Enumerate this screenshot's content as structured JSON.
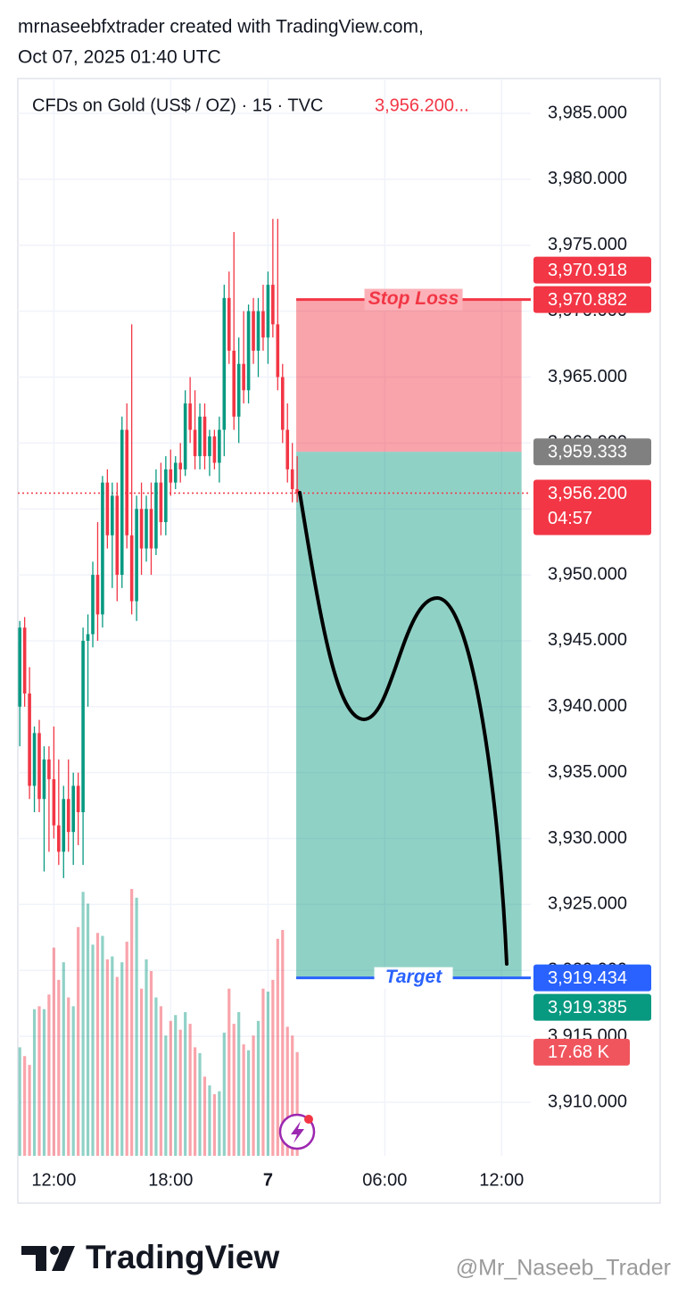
{
  "chart_data": {
    "type": "candlestick",
    "header": [
      "mrnaseebfxtrader created with TradingView.com,",
      "Oct 07, 2025 01:40 UTC"
    ],
    "legend_title": "CFDs on Gold (US$ / OZ) · 15 · TVC",
    "legend_price": "3,956.200...",
    "up_color": "#089981",
    "down_color": "#f23645",
    "ohlc": [
      [
        3940,
        3946.5,
        3937,
        3946
      ],
      [
        3946,
        3946.8,
        3940,
        3941
      ],
      [
        3941,
        3943,
        3933,
        3934
      ],
      [
        3934,
        3938.5,
        3932,
        3938
      ],
      [
        3938,
        3939,
        3932,
        3933
      ],
      [
        3933,
        3937,
        3927.5,
        3936
      ],
      [
        3936,
        3937,
        3929,
        3934.5
      ],
      [
        3934.5,
        3938.5,
        3930,
        3931
      ],
      [
        3931,
        3936,
        3928,
        3929
      ],
      [
        3929,
        3934,
        3927,
        3933
      ],
      [
        3933,
        3936,
        3929,
        3930.5
      ],
      [
        3930.5,
        3935,
        3928,
        3934
      ],
      [
        3934,
        3935,
        3929.5,
        3932
      ],
      [
        3932,
        3946,
        3928,
        3945
      ],
      [
        3945,
        3947,
        3940,
        3945.5
      ],
      [
        3945.5,
        3951,
        3944.5,
        3950
      ],
      [
        3950,
        3954,
        3945,
        3947
      ],
      [
        3947,
        3957.5,
        3946,
        3957
      ],
      [
        3957,
        3958,
        3952,
        3953
      ],
      [
        3953,
        3957,
        3949,
        3956
      ],
      [
        3956,
        3957,
        3948,
        3950
      ],
      [
        3950,
        3962,
        3949,
        3961
      ],
      [
        3961,
        3963,
        3952,
        3953
      ],
      [
        3953,
        3969,
        3947,
        3948
      ],
      [
        3948,
        3956,
        3946.5,
        3955
      ],
      [
        3955,
        3957,
        3950,
        3952
      ],
      [
        3952,
        3956,
        3951,
        3955
      ],
      [
        3955,
        3957,
        3950,
        3952
      ],
      [
        3952,
        3958,
        3951.5,
        3957
      ],
      [
        3957,
        3958.5,
        3953,
        3954
      ],
      [
        3954,
        3959,
        3953,
        3958
      ],
      [
        3958,
        3959.5,
        3956,
        3957
      ],
      [
        3957,
        3959,
        3956.5,
        3958.5
      ],
      [
        3958.5,
        3960,
        3957,
        3958
      ],
      [
        3958,
        3964,
        3957.5,
        3963
      ],
      [
        3963,
        3965,
        3960,
        3961
      ],
      [
        3961,
        3964,
        3958,
        3959
      ],
      [
        3959,
        3963,
        3958,
        3962
      ],
      [
        3962,
        3963,
        3958,
        3959
      ],
      [
        3959,
        3961,
        3957.5,
        3960.5
      ],
      [
        3960.5,
        3961,
        3958,
        3958.5
      ],
      [
        3958.5,
        3962,
        3957,
        3961
      ],
      [
        3961,
        3972,
        3959,
        3971
      ],
      [
        3971,
        3973,
        3966,
        3967
      ],
      [
        3967,
        3976,
        3961,
        3962
      ],
      [
        3962,
        3968,
        3960,
        3966
      ],
      [
        3966,
        3970,
        3963,
        3964
      ],
      [
        3964,
        3970.5,
        3963,
        3970
      ],
      [
        3970,
        3971,
        3966,
        3967
      ],
      [
        3967,
        3971,
        3965,
        3970
      ],
      [
        3970,
        3972,
        3967,
        3968
      ],
      [
        3968,
        3973,
        3966,
        3972
      ],
      [
        3972,
        3977,
        3968,
        3969
      ],
      [
        3969,
        3977,
        3964,
        3965
      ],
      [
        3965,
        3966,
        3960,
        3961
      ],
      [
        3961,
        3963,
        3957,
        3958
      ],
      [
        3958,
        3960,
        3955.5,
        3956.5
      ],
      [
        3956.5,
        3959,
        3955.5,
        3956.2
      ]
    ],
    "volumes": [
      18500,
      17000,
      15500,
      25000,
      25500,
      25000,
      27500,
      35500,
      30000,
      33000,
      27000,
      25500,
      39000,
      45000,
      43000,
      36000,
      38000,
      37500,
      33500,
      34000,
      30500,
      33000,
      36500,
      45500,
      44000,
      28500,
      33500,
      31500,
      27000,
      25500,
      20500,
      23000,
      24000,
      21500,
      24500,
      22500,
      18500,
      17500,
      13500,
      12000,
      10500,
      11000,
      21000,
      28500,
      22500,
      24500,
      19000,
      18000,
      20500,
      23000,
      28500,
      28000,
      30000,
      37000,
      38500,
      22000,
      20500,
      17680
    ],
    "last_volume_label": "17.68 K",
    "volume_tag_color": "#f0555e",
    "xlim": [
      -0.4,
      105
    ],
    "xticks": [
      {
        "value": 7,
        "label": "12:00"
      },
      {
        "value": 31,
        "label": "18:00"
      },
      {
        "value": 51,
        "label": "7"
      },
      {
        "value": 75,
        "label": "06:00"
      },
      {
        "value": 99,
        "label": "12:00"
      }
    ],
    "ylim": [
      3905.94,
      3987.64
    ],
    "yticks": [
      {
        "value": 3985,
        "label": "3,985.000"
      },
      {
        "value": 3980,
        "label": "3,980.000"
      },
      {
        "value": 3975,
        "label": "3,975.000"
      },
      {
        "value": 3970,
        "label": "3,970.000"
      },
      {
        "value": 3965,
        "label": "3,965.000"
      },
      {
        "value": 3960,
        "label": "3,960.000"
      },
      {
        "value": 3955,
        "label": "3,955.000"
      },
      {
        "value": 3950,
        "label": "3,950.000"
      },
      {
        "value": 3945,
        "label": "3,945.000"
      },
      {
        "value": 3940,
        "label": "3,940.000"
      },
      {
        "value": 3935,
        "label": "3,935.000"
      },
      {
        "value": 3930,
        "label": "3,930.000"
      },
      {
        "value": 3925,
        "label": "3,925.000"
      },
      {
        "value": 3920,
        "label": "3,920.000"
      },
      {
        "value": 3915,
        "label": "3,915.000"
      },
      {
        "value": 3910,
        "label": "3,910.000"
      }
    ],
    "grid": true,
    "current_price": 3956.2,
    "tags": [
      {
        "value": 3970.882,
        "label": "3,970.882",
        "color": "#f23645"
      },
      {
        "value": 3970.918,
        "label": "3,970.918",
        "color": "#f23645"
      },
      {
        "value": 3959.333,
        "label": "3,959.333",
        "color": "#808080"
      },
      {
        "value": 3956.2,
        "label": "3,956.200",
        "color": "#f23645",
        "countdown": "04:57"
      },
      {
        "value": 3919.434,
        "label": "3,919.434",
        "color": "#2962ff"
      },
      {
        "value": 3919.385,
        "label": "3,919.385",
        "color": "#089981"
      }
    ],
    "position": {
      "entry": 3959.333,
      "stop": 3970.882,
      "target": 3919.434,
      "start": 56.8,
      "end": 103.1,
      "stop_label": "Stop Loss",
      "target_label": "Target",
      "stop_color": "#f23645",
      "target_color": "#2962ff"
    },
    "brand": "TradingView",
    "watermark": "@Mr_Naseeb_Trader"
  }
}
